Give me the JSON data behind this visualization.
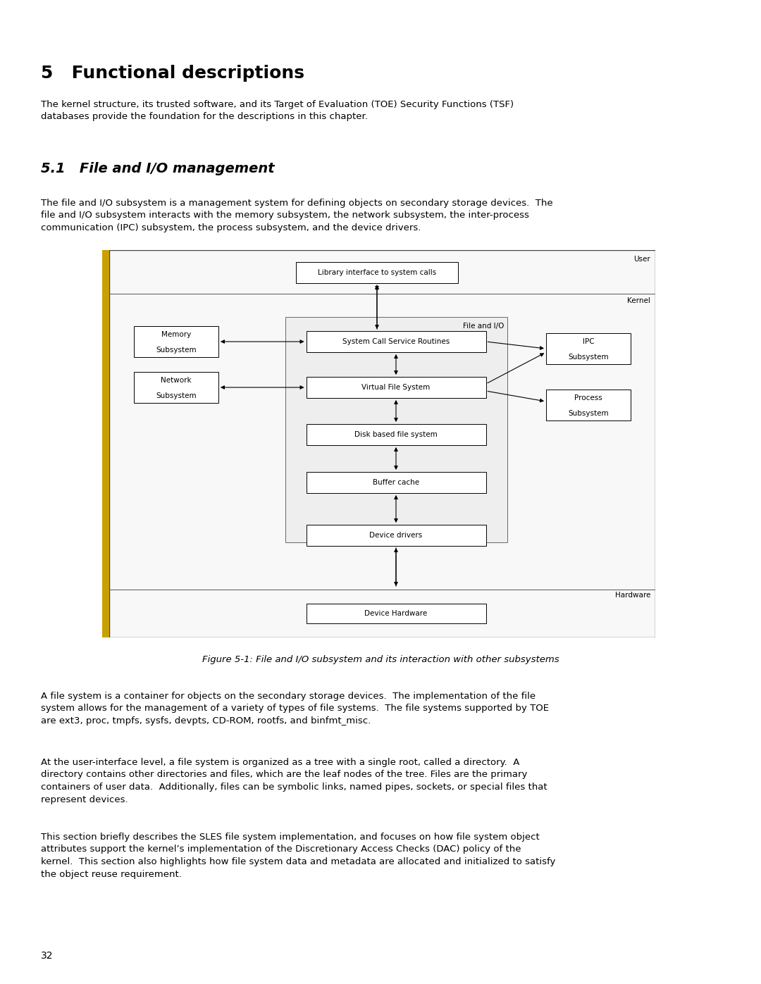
{
  "title": "5   Functional descriptions",
  "intro_text": "The kernel structure, its trusted software, and its Target of Evaluation (TOE) Security Functions (TSF)\ndatabases provide the foundation for the descriptions in this chapter.",
  "section_title": "5.1   File and I/O management",
  "section_intro": "The file and I/O subsystem is a management system for defining objects on secondary storage devices.  The\nfile and I/O subsystem interacts with the memory subsystem, the network subsystem, the inter-process\ncommunication (IPC) subsystem, the process subsystem, and the device drivers.",
  "figure_caption": "Figure 5-1: File and I/O subsystem and its interaction with other subsystems",
  "para1": "A file system is a container for objects on the secondary storage devices.  The implementation of the file\nsystem allows for the management of a variety of types of file systems.  The file systems supported by TOE\nare ext3, proc, tmpfs, sysfs, devpts, CD-ROM, rootfs, and binfmt_misc.",
  "para2": "At the user-interface level, a file system is organized as a tree with a single root, called a directory.  A\ndirectory contains other directories and files, which are the leaf nodes of the tree. Files are the primary\ncontainers of user data.  Additionally, files can be symbolic links, named pipes, sockets, or special files that\nrepresent devices.",
  "para3": "This section briefly describes the SLES file system implementation, and focuses on how file system object\nattributes support the kernel’s implementation of the Discretionary Access Checks (DAC) policy of the\nkernel.  This section also highlights how file system data and metadata are allocated and initialized to satisfy\nthe object reuse requirement.",
  "page_num": "32",
  "bg_color": "#ffffff",
  "text_color": "#000000",
  "left_bar_color": "#c8a000"
}
